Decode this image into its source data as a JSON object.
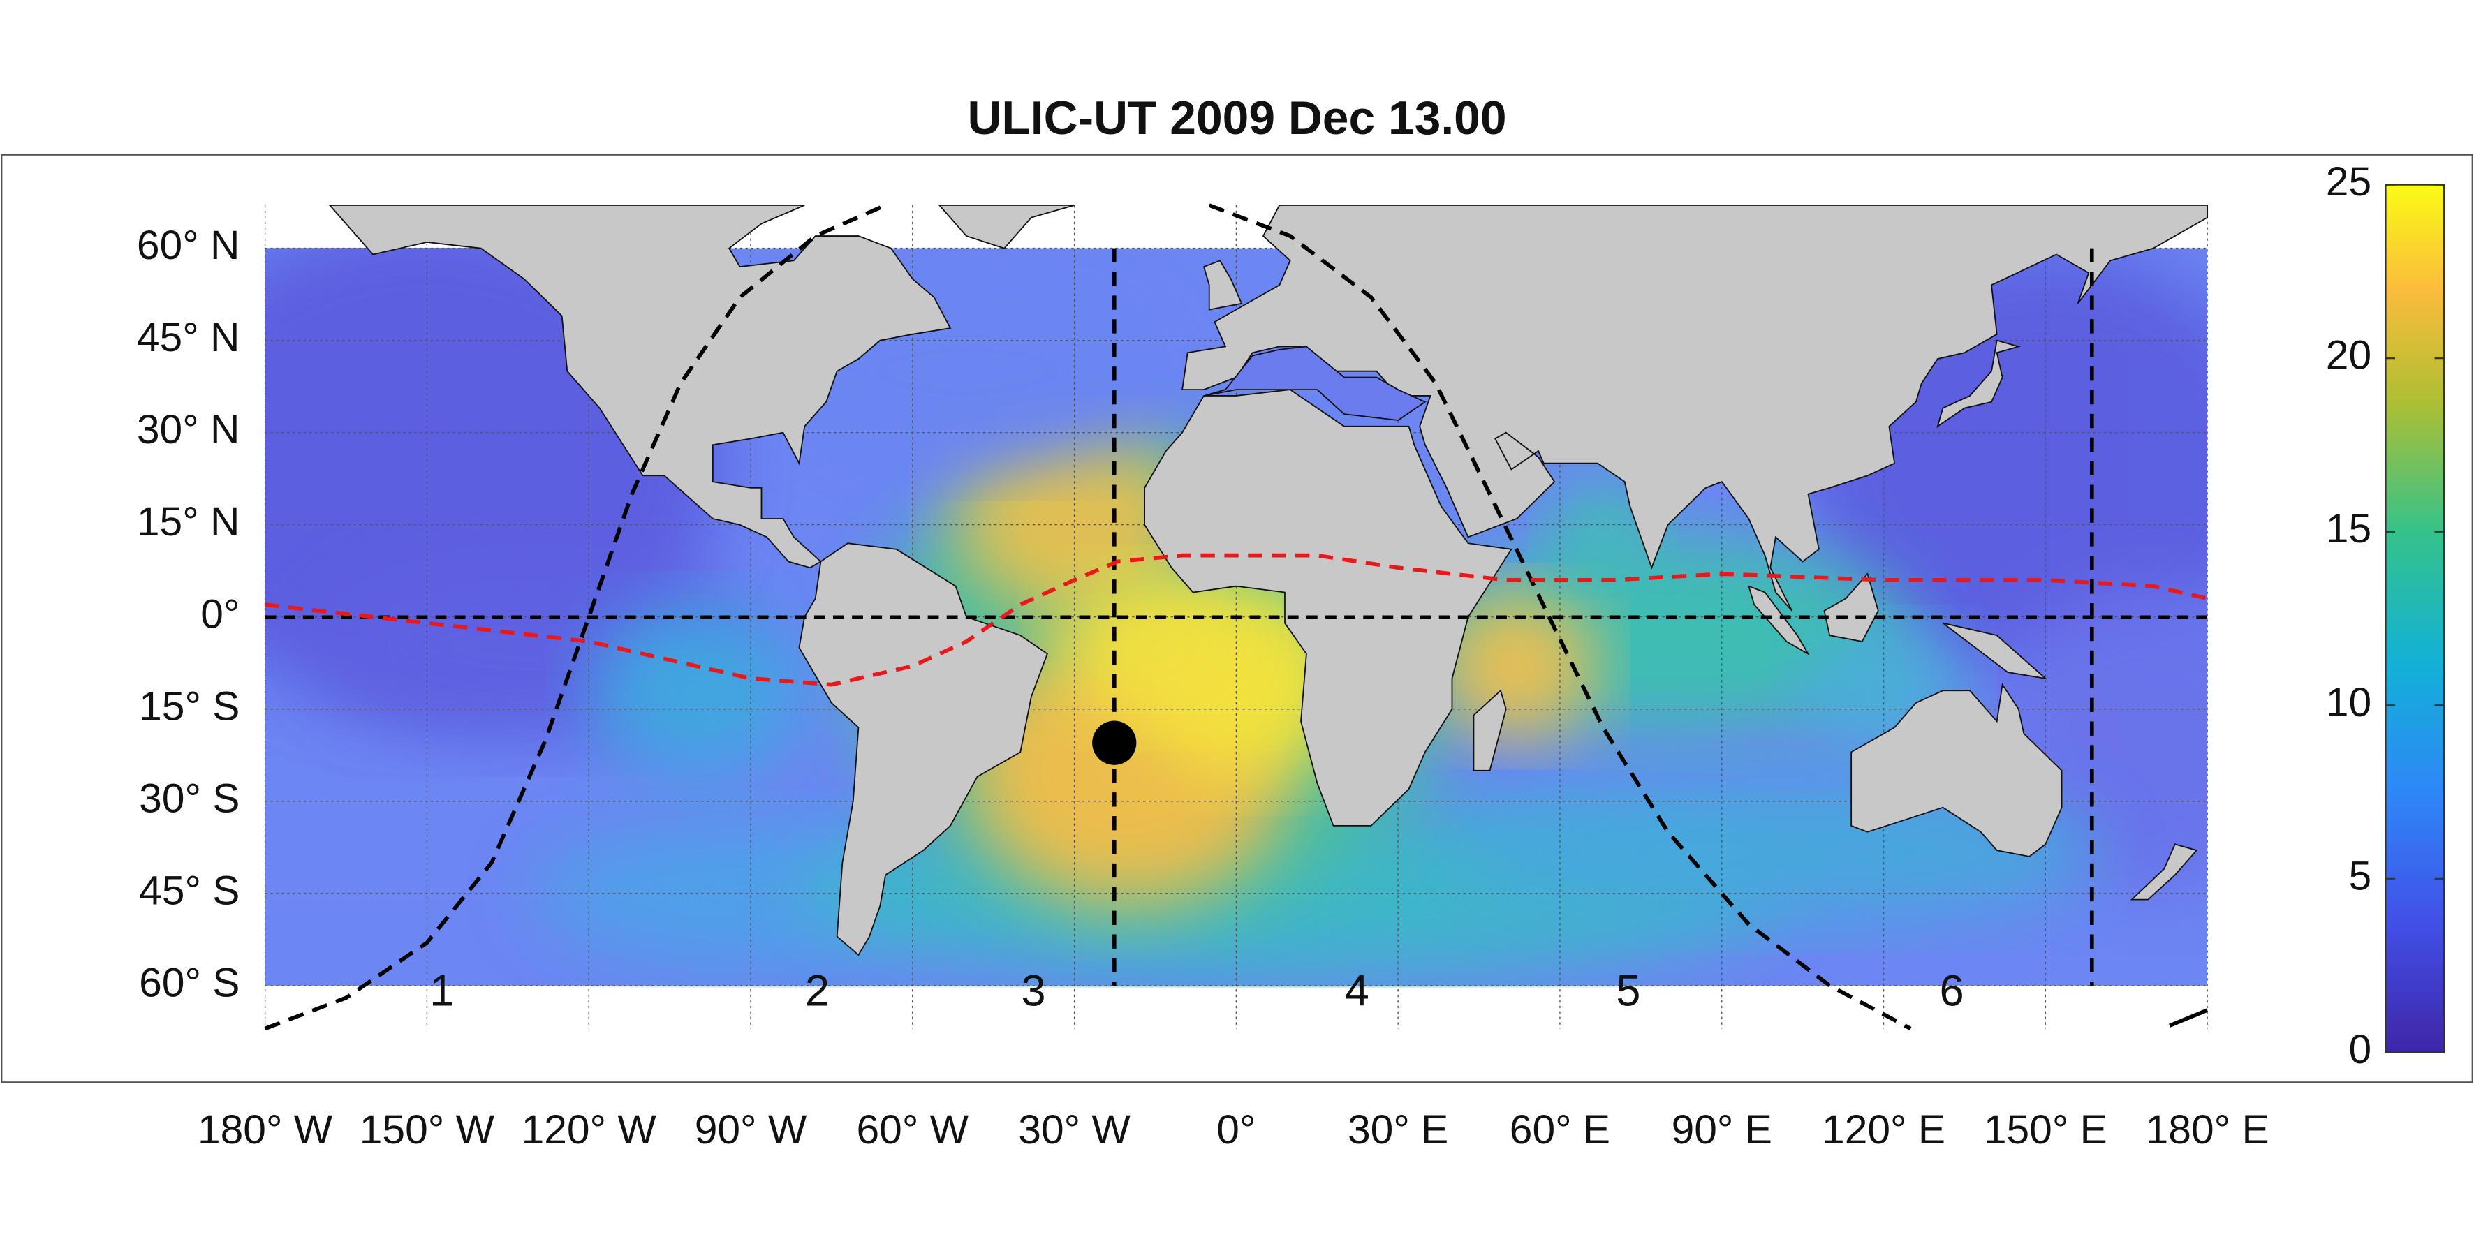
{
  "map": {
    "title": "ULIC-UT 2009 Dec 13.00",
    "xlim": [
      -180,
      180
    ],
    "ylim": [
      -67,
      67
    ],
    "xticks": [
      {
        "value": -180,
        "label": "180° W"
      },
      {
        "value": -150,
        "label": "150° W"
      },
      {
        "value": -120,
        "label": "120° W"
      },
      {
        "value": -90,
        "label": "90° W"
      },
      {
        "value": -60,
        "label": "60° W"
      },
      {
        "value": -30,
        "label": "30° W"
      },
      {
        "value": 0,
        "label": "0°"
      },
      {
        "value": 30,
        "label": "30° E"
      },
      {
        "value": 60,
        "label": "60° E"
      },
      {
        "value": 90,
        "label": "90° E"
      },
      {
        "value": 120,
        "label": "120° E"
      },
      {
        "value": 150,
        "label": "150° E"
      },
      {
        "value": 180,
        "label": "180° E"
      }
    ],
    "yticks": [
      {
        "value": 60,
        "label": "60° N"
      },
      {
        "value": 45,
        "label": "45° N"
      },
      {
        "value": 30,
        "label": "30° N"
      },
      {
        "value": 15,
        "label": "15° N"
      },
      {
        "value": 0,
        "label": "0°"
      },
      {
        "value": -15,
        "label": "15° S"
      },
      {
        "value": -30,
        "label": "30° S"
      },
      {
        "value": -45,
        "label": "45° S"
      },
      {
        "value": -60,
        "label": "60° S"
      }
    ],
    "colorbar": {
      "lim": [
        0,
        25
      ],
      "ticks": [
        0,
        5,
        10,
        15,
        20,
        25
      ]
    },
    "region_labels": [
      "1",
      "2",
      "3",
      "4",
      "5",
      "6"
    ],
    "marker": {
      "lon": -22.6,
      "lat": -20.5
    }
  }
}
